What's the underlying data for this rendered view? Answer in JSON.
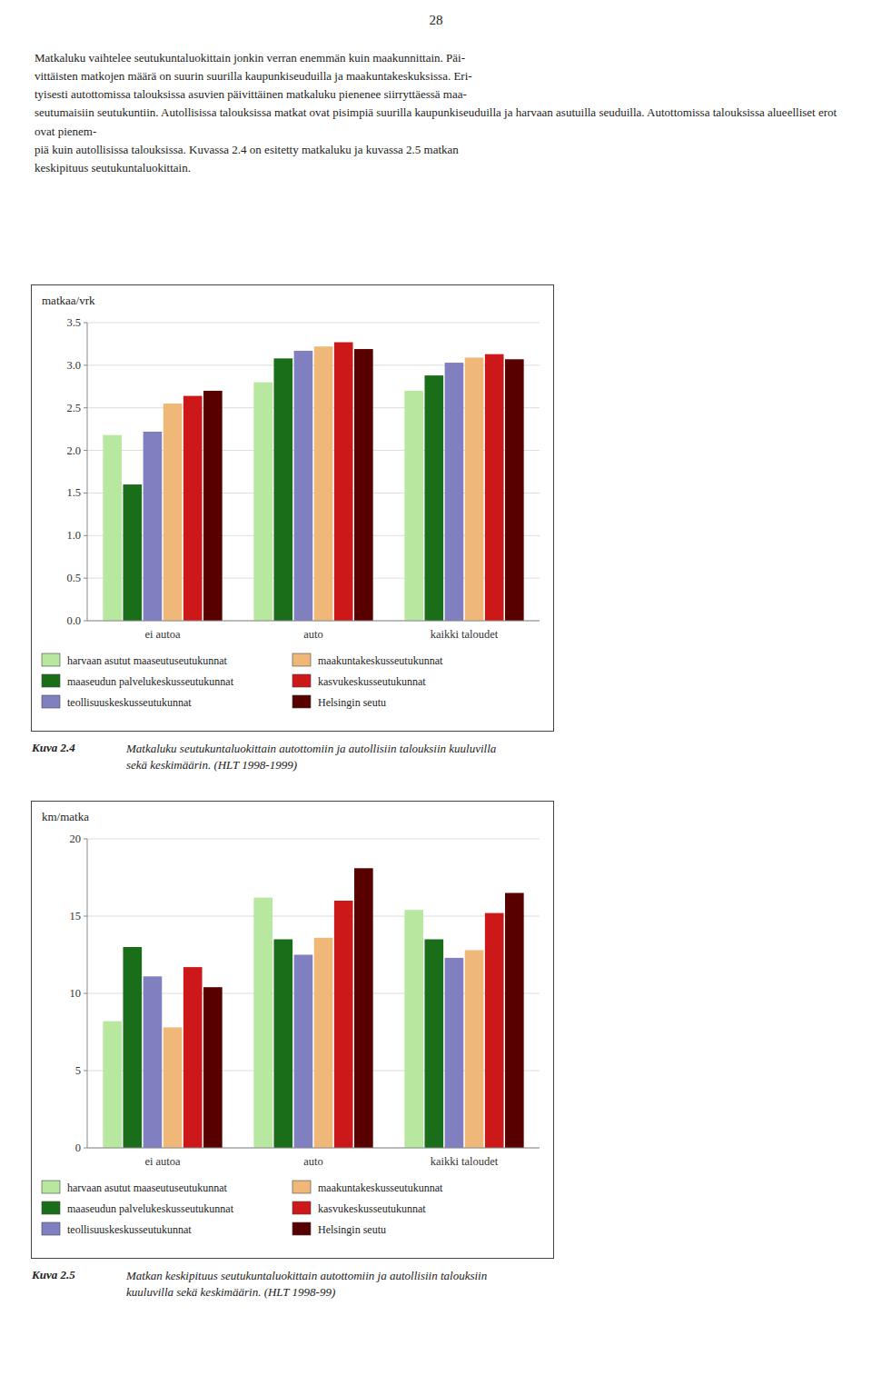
{
  "page_number": "28",
  "text": [
    "Matkaluku vaihtelee seutukuntaluokittain jonkin verran enemmän kuin maakunnittain. Päi-",
    "vittäisten matkojen määrä on suurin suurilla kaupunkiseuduilla ja maakuntakeskuksissa. Eri-",
    "tyisesti autottomissa talouksissa asuvien päivittäinen matkaluku pienenee siirryttäessä maa-",
    "seutumaisiin seutukuntiin. Autollisissa talouksissa matkat ovat pisimpiä suurilla kaupunkiseuduilla ja harvaan asutuilla seuduilla. Autottomissa talouksissa alueelliset erot ovat pienem-",
    "piä kuin autollisissa talouksissa. Kuvassa 2.4 on esitetty matkaluku ja kuvassa 2.5 matkan",
    "keskipituus seutukuntaluokittain."
  ],
  "chart_data": [
    {
      "type": "bar",
      "title": "Kuva 2.4",
      "subtitle": "Matkaluku seutukuntaluokittain autottomiin ja autollisiin talouksiin kuuluvilla\nsekä keskimäärin. (HLT 1998-1999)",
      "ylabel": "matkaa/vrk",
      "categories": [
        "ei autoa",
        "auto",
        "kaikki taloudet"
      ],
      "series": [
        {
          "name": "harvaan asutut maaseutuseutukunnat",
          "color": "#b8e8a0",
          "values": [
            2.18,
            2.8,
            2.7
          ]
        },
        {
          "name": "maaseudun palvelukeskusseutukunnat",
          "color": "#1a6e1a",
          "values": [
            1.6,
            3.08,
            2.88
          ]
        },
        {
          "name": "teollisuuskeskusseutukunnat",
          "color": "#8080c0",
          "values": [
            2.22,
            3.17,
            3.03
          ]
        },
        {
          "name": "maakuntakeskusseutukunnat",
          "color": "#f0b878",
          "values": [
            2.55,
            3.22,
            3.09
          ]
        },
        {
          "name": "kasvukeskusseutukunnat",
          "color": "#cc1818",
          "values": [
            2.64,
            3.27,
            3.13
          ]
        },
        {
          "name": "Helsingin seutu",
          "color": "#580000",
          "values": [
            2.7,
            3.19,
            3.07
          ]
        }
      ],
      "ylim": [
        0,
        3.5
      ],
      "yticks": [
        {
          "value": 0,
          "label": "0.0"
        },
        0.5,
        {
          "value": 1,
          "label": "1.0"
        },
        1.5,
        {
          "value": 2,
          "label": "2.0"
        },
        2.5,
        {
          "value": 3,
          "label": "3.0"
        },
        3.5
      ],
      "grid": true,
      "legend": "bottom"
    },
    {
      "type": "bar",
      "title": "Kuva 2.5",
      "subtitle": "Matkan keskipituus seutukuntaluokittain autottomiin ja autollisiin talouksiin\nkuuluvilla sekä keskimäärin. (HLT 1998-99)",
      "ylabel": "km/matka",
      "categories": [
        "ei autoa",
        "auto",
        "kaikki taloudet"
      ],
      "series": [
        {
          "name": "harvaan asutut maaseutuseutukunnat",
          "color": "#b8e8a0",
          "values": [
            8.2,
            16.2,
            15.4
          ]
        },
        {
          "name": "maaseudun palvelukeskusseutukunnat",
          "color": "#1a6e1a",
          "values": [
            13.0,
            13.5,
            13.5
          ]
        },
        {
          "name": "teollisuuskeskusseutukunnat",
          "color": "#8080c0",
          "values": [
            11.1,
            12.5,
            12.3
          ]
        },
        {
          "name": "maakuntakeskusseutukunnat",
          "color": "#f0b878",
          "values": [
            7.8,
            13.6,
            12.8
          ]
        },
        {
          "name": "kasvukeskusseutukunnat",
          "color": "#cc1818",
          "values": [
            11.7,
            16.0,
            15.2
          ]
        },
        {
          "name": "Helsingin seutu",
          "color": "#580000",
          "values": [
            10.4,
            18.1,
            16.5
          ]
        }
      ],
      "ylim": [
        0,
        20
      ],
      "yticks": [
        0,
        5,
        10,
        15,
        20
      ],
      "grid": true,
      "legend": "bottom"
    }
  ]
}
